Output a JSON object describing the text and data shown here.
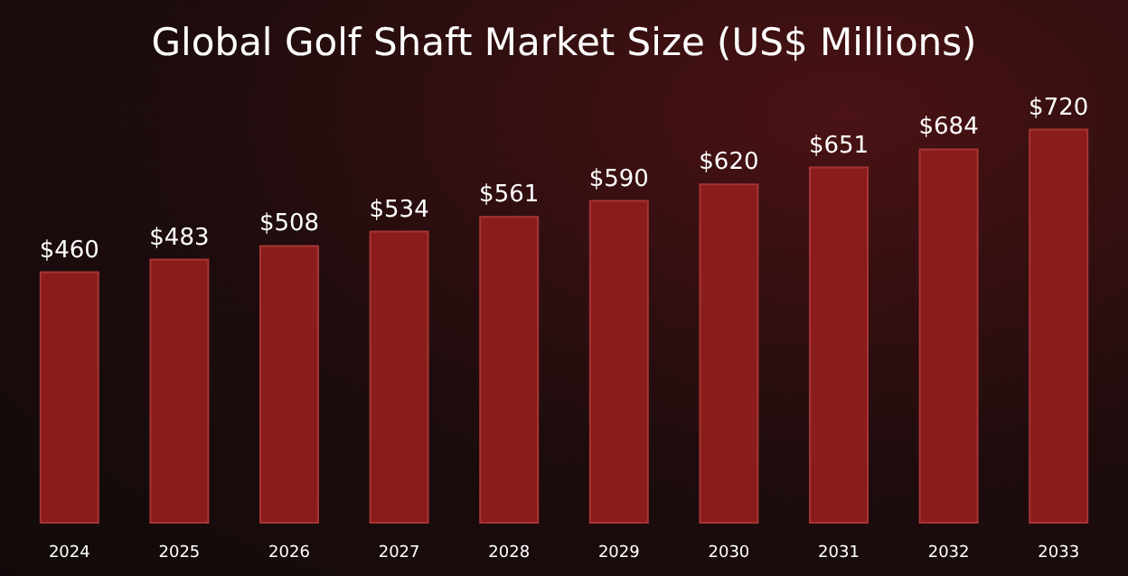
{
  "chart_data": {
    "type": "bar",
    "title": "Global Golf Shaft Market Size (US$ Millions)",
    "categories": [
      "2024",
      "2025",
      "2026",
      "2027",
      "2028",
      "2029",
      "2030",
      "2031",
      "2032",
      "2033"
    ],
    "values": [
      460,
      483,
      508,
      534,
      561,
      590,
      620,
      651,
      684,
      720
    ],
    "value_labels": [
      "$460",
      "$483",
      "$508",
      "$534",
      "$561",
      "$590",
      "$620",
      "$651",
      "$684",
      "$720"
    ],
    "color": "#8b1c1c"
  }
}
